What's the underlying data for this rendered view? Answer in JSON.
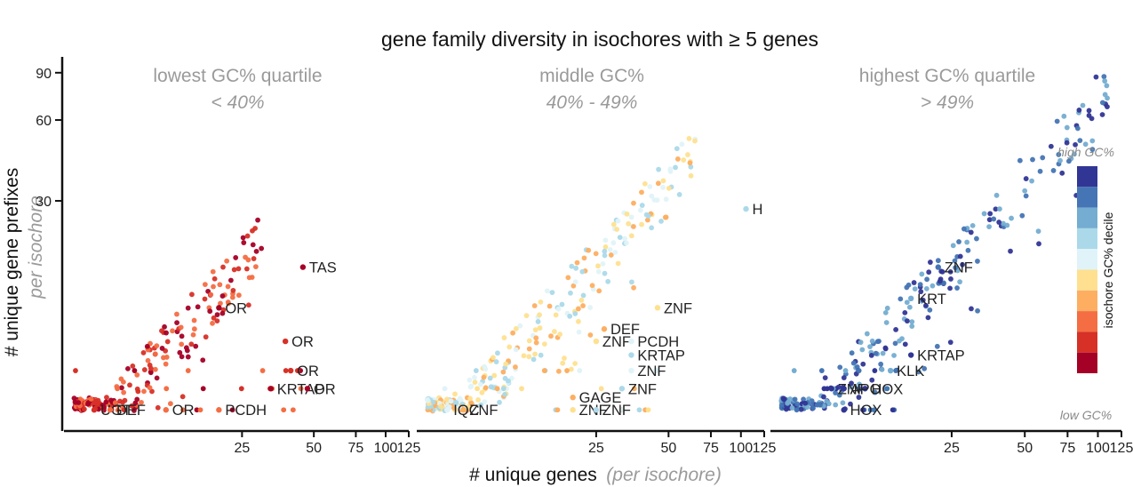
{
  "chart_data": {
    "type": "scatter",
    "title": "gene family diversity in isochores with ≥ 5 genes",
    "xlabel_main": "# unique genes",
    "xlabel_sub": "(per isochore)",
    "ylabel_main": "# unique gene prefixes",
    "ylabel_sub": "per isochore",
    "x_scale": "log",
    "y_scale": "log",
    "x_ticks": [
      25,
      50,
      75,
      100,
      125
    ],
    "x_tick_labels": [
      "25",
      "50",
      "75",
      "100",
      "125"
    ],
    "y_ticks": [
      30,
      60,
      90
    ],
    "y_tick_labels": [
      "30",
      "60",
      "90"
    ],
    "colors": [
      "#a50026",
      "#d73027",
      "#f46d43",
      "#fdae61",
      "#fee090",
      "#e0f3f8",
      "#abd9e9",
      "#74add1",
      "#4575b4",
      "#313695"
    ],
    "legend": {
      "title": "isochore GC% decile",
      "top_label": "high GC%",
      "bottom_label": "low GC%",
      "placement": "right"
    },
    "panels": [
      {
        "title": "lowest GC% quartile",
        "subtitle": "< 40%",
        "deciles": [
          0,
          2
        ],
        "labels": [
          {
            "text": "TAS",
            "x": 45,
            "y": 17
          },
          {
            "text": "OR",
            "x": 20,
            "y": 12
          },
          {
            "text": "OR",
            "x": 38,
            "y": 9
          },
          {
            "text": "OR",
            "x": 40,
            "y": 7
          },
          {
            "text": "KRTAP",
            "x": 33,
            "y": 6
          },
          {
            "text": "OR",
            "x": 47,
            "y": 6
          },
          {
            "text": "UGT",
            "x": 6,
            "y": 5
          },
          {
            "text": "DEF",
            "x": 7,
            "y": 5
          },
          {
            "text": "OR",
            "x": 12,
            "y": 5
          },
          {
            "text": "PCDH",
            "x": 20,
            "y": 5
          }
        ]
      },
      {
        "title": "middle GC%",
        "subtitle": "40% - 49%",
        "deciles": [
          3,
          6
        ],
        "labels": [
          {
            "text": "H",
            "x": 105,
            "y": 28
          },
          {
            "text": "ZNF",
            "x": 45,
            "y": 12
          },
          {
            "text": "DEF",
            "x": 27,
            "y": 10
          },
          {
            "text": "ZNF",
            "x": 25,
            "y": 9
          },
          {
            "text": "PCDH",
            "x": 35,
            "y": 9
          },
          {
            "text": "KRTAP",
            "x": 35,
            "y": 8
          },
          {
            "text": "ZNF",
            "x": 35,
            "y": 7
          },
          {
            "text": "ZNF",
            "x": 32,
            "y": 6
          },
          {
            "text": "ZNF",
            "x": 20,
            "y": 5
          },
          {
            "text": "IQC",
            "x": 6,
            "y": 5
          },
          {
            "text": "ZNF",
            "x": 7,
            "y": 5
          },
          {
            "text": "GAGE",
            "x": 20,
            "y": 5
          },
          {
            "text": "ZNF",
            "x": 25,
            "y": 5
          }
        ]
      },
      {
        "title": "highest GC% quartile",
        "subtitle": "> 49%",
        "deciles": [
          7,
          9
        ],
        "labels": [
          {
            "text": "ZNF",
            "x": 22,
            "y": 17
          },
          {
            "text": "KRT",
            "x": 17,
            "y": 13
          },
          {
            "text": "KRTAP",
            "x": 17,
            "y": 8
          },
          {
            "text": "KLK",
            "x": 14,
            "y": 7
          },
          {
            "text": "ZNF",
            "x": 8,
            "y": 6
          },
          {
            "text": "HOX",
            "x": 11,
            "y": 6
          },
          {
            "text": "APO",
            "x": 9,
            "y": 6
          },
          {
            "text": "HOX",
            "x": 9,
            "y": 5
          }
        ]
      }
    ]
  }
}
